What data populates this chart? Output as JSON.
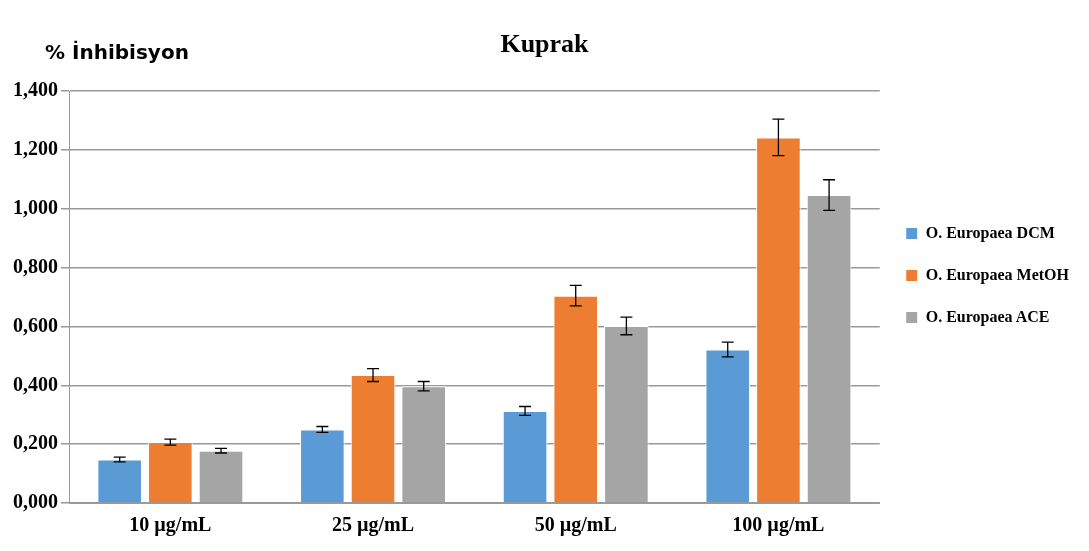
{
  "chart_data": {
    "type": "bar",
    "title": "Kuprak",
    "ylabel": "% İnhibisyon",
    "categories": [
      "10 µg/mL",
      "25 µg/mL",
      "50 µg/mL",
      "100 µg/mL"
    ],
    "series": [
      {
        "name": "O. Europaea DCM",
        "color": "#5b9bd5",
        "values": [
          0.148,
          0.25,
          0.313,
          0.522
        ],
        "errors": [
          0.008,
          0.01,
          0.015,
          0.025
        ]
      },
      {
        "name": "O. Europaea MetOH",
        "color": "#ed7d31",
        "values": [
          0.207,
          0.435,
          0.705,
          1.243
        ],
        "errors": [
          0.01,
          0.022,
          0.035,
          0.062
        ]
      },
      {
        "name": "O. Europaea ACE",
        "color": "#a5a5a5",
        "values": [
          0.178,
          0.397,
          0.602,
          1.047
        ],
        "errors": [
          0.008,
          0.016,
          0.03,
          0.052
        ]
      }
    ],
    "ylim": [
      0,
      1.4
    ],
    "yticks": [
      {
        "value": 0,
        "label": "0,000"
      },
      {
        "value": 0.2,
        "label": "0,200"
      },
      {
        "value": 0.4,
        "label": "0,400"
      },
      {
        "value": 0.6,
        "label": "0,600"
      },
      {
        "value": 0.8,
        "label": "0,800"
      },
      {
        "value": 1,
        "label": "1,000"
      },
      {
        "value": 1.2,
        "label": "1,200"
      },
      {
        "value": 1.4,
        "label": "1,400"
      }
    ],
    "grid": "y",
    "legend": "right"
  }
}
